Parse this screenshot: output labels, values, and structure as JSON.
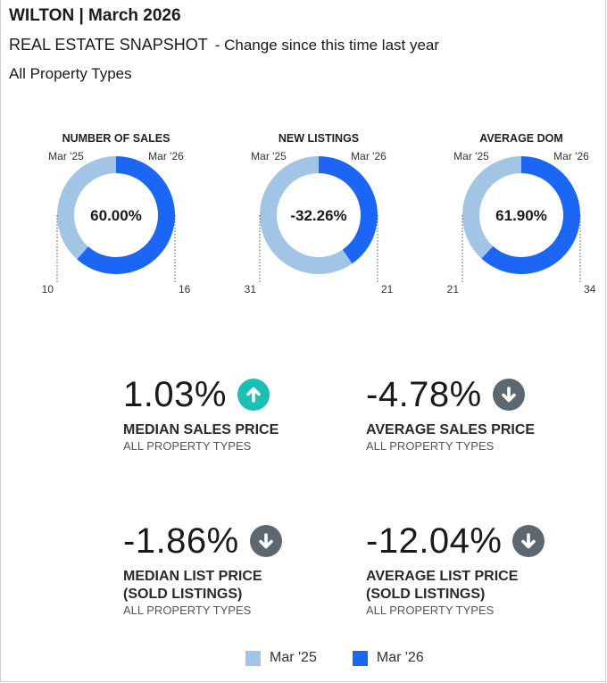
{
  "header": {
    "title": "WILTON | March 2026",
    "subtitle": "REAL ESTATE SNAPSHOT",
    "change_text": "- Change since this time last year",
    "property_types": "All Property Types"
  },
  "colors": {
    "prior": "#a2c5e6",
    "current": "#1b66f5",
    "up": "#1cbfb3",
    "down": "#5c6770"
  },
  "chart_data": [
    {
      "type": "pie",
      "title": "NUMBER OF SALES",
      "left_label": "Mar '25",
      "right_label": "Mar '26",
      "center_label": "60.00%",
      "values": [
        10,
        16
      ],
      "labels": [
        "10",
        "16"
      ]
    },
    {
      "type": "pie",
      "title": "NEW LISTINGS",
      "left_label": "Mar '25",
      "right_label": "Mar '26",
      "center_label": "-32.26%",
      "values": [
        31,
        21
      ],
      "labels": [
        "31",
        "21"
      ]
    },
    {
      "type": "pie",
      "title": "AVERAGE DOM",
      "left_label": "Mar '25",
      "right_label": "Mar '26",
      "center_label": "61.90%",
      "values": [
        21,
        34
      ],
      "labels": [
        "21",
        "34"
      ]
    }
  ],
  "metrics": [
    {
      "value": "1.03%",
      "direction": "up",
      "label": "MEDIAN SALES PRICE",
      "label2": "",
      "sub": "ALL PROPERTY TYPES"
    },
    {
      "value": "-4.78%",
      "direction": "down",
      "label": "AVERAGE SALES PRICE",
      "label2": "",
      "sub": "ALL PROPERTY TYPES"
    },
    {
      "value": "-1.86%",
      "direction": "down",
      "label": "MEDIAN LIST PRICE",
      "label2": "(SOLD LISTINGS)",
      "sub": "ALL PROPERTY TYPES"
    },
    {
      "value": "-12.04%",
      "direction": "down",
      "label": "AVERAGE LIST PRICE",
      "label2": "(SOLD LISTINGS)",
      "sub": "ALL PROPERTY TYPES"
    }
  ],
  "legend": {
    "prior": "Mar '25",
    "current": "Mar '26"
  }
}
